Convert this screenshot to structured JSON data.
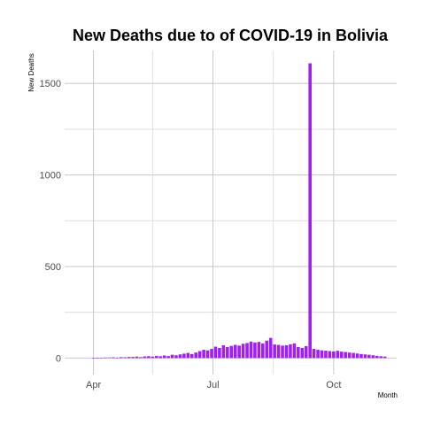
{
  "chart_data": {
    "type": "bar",
    "title": "New Deaths due to of COVID-19 in Bolivia",
    "xlabel": "Month",
    "ylabel": "New  Deaths",
    "xlim": [
      "2020-03-10",
      "2020-11-18"
    ],
    "ylim": [
      -90,
      1680
    ],
    "y_ticks": [
      0,
      500,
      1000,
      1500
    ],
    "x_ticks": [
      {
        "date": "2020-04-01",
        "label": "Apr"
      },
      {
        "date": "2020-07-01",
        "label": "Jul"
      },
      {
        "date": "2020-10-01",
        "label": "Oct"
      }
    ],
    "x_minor_ticks": [
      "2020-05-16",
      "2020-08-16"
    ],
    "grid": true,
    "bar_color": "#a020f0",
    "series": [
      {
        "x": [
          "2020-04-01",
          "2020-04-04",
          "2020-04-07",
          "2020-04-10",
          "2020-04-13",
          "2020-04-16",
          "2020-04-19",
          "2020-04-22",
          "2020-04-25",
          "2020-04-28",
          "2020-05-01",
          "2020-05-04",
          "2020-05-07",
          "2020-05-10",
          "2020-05-13",
          "2020-05-16",
          "2020-05-19",
          "2020-05-22",
          "2020-05-25",
          "2020-05-28",
          "2020-05-31",
          "2020-06-03",
          "2020-06-06",
          "2020-06-09",
          "2020-06-12",
          "2020-06-15",
          "2020-06-18",
          "2020-06-21",
          "2020-06-24",
          "2020-06-27",
          "2020-06-30",
          "2020-07-03",
          "2020-07-06",
          "2020-07-09",
          "2020-07-12",
          "2020-07-15",
          "2020-07-18",
          "2020-07-21",
          "2020-07-24",
          "2020-07-27",
          "2020-07-30",
          "2020-08-02",
          "2020-08-05",
          "2020-08-08",
          "2020-08-11",
          "2020-08-14",
          "2020-08-17",
          "2020-08-20",
          "2020-08-23",
          "2020-08-26",
          "2020-08-29",
          "2020-09-01",
          "2020-09-04",
          "2020-09-07",
          "2020-09-10",
          "2020-09-13",
          "2020-09-16",
          "2020-09-19",
          "2020-09-22",
          "2020-09-25",
          "2020-09-28",
          "2020-10-01",
          "2020-10-04",
          "2020-10-07",
          "2020-10-10",
          "2020-10-13",
          "2020-10-16",
          "2020-10-19",
          "2020-10-22",
          "2020-10-25",
          "2020-10-28",
          "2020-10-31",
          "2020-11-03",
          "2020-11-06",
          "2020-11-09"
        ],
        "values": [
          1,
          1,
          2,
          3,
          3,
          4,
          2,
          5,
          4,
          6,
          6,
          8,
          5,
          9,
          10,
          8,
          12,
          10,
          14,
          11,
          18,
          15,
          20,
          24,
          28,
          22,
          30,
          38,
          45,
          42,
          50,
          62,
          55,
          70,
          60,
          66,
          72,
          68,
          78,
          82,
          90,
          85,
          88,
          80,
          95,
          110,
          74,
          72,
          68,
          70,
          75,
          80,
          60,
          55,
          65,
          1610,
          50,
          45,
          42,
          40,
          38,
          36,
          40,
          35,
          33,
          30,
          28,
          25,
          22,
          20,
          18,
          15,
          12,
          10,
          8
        ]
      }
    ]
  }
}
